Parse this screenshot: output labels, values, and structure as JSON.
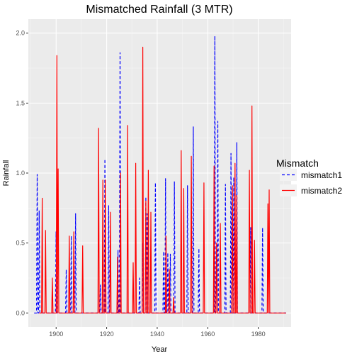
{
  "chart_data": {
    "type": "line",
    "title": "Mismatched Rainfall (3 MTR)",
    "xlabel": "Year",
    "ylabel": "Rainfall",
    "xlim": [
      1889,
      1993
    ],
    "ylim": [
      -0.1,
      2.1
    ],
    "x_ticks": [
      1900,
      1920,
      1940,
      1960,
      1980
    ],
    "y_ticks": [
      0.0,
      0.5,
      1.0,
      1.5,
      2.0
    ],
    "x_tick_labels": [
      "1900",
      "1920",
      "1940",
      "1960",
      "1980"
    ],
    "y_tick_labels": [
      "0.0",
      "0.5",
      "1.0",
      "1.5",
      "2.0"
    ],
    "grid": true,
    "legend": {
      "title": "Mismatch",
      "position": "right"
    },
    "series": [
      {
        "name": "mismatch1",
        "color": "#0000ff",
        "dash": "dashed",
        "spikes": [
          [
            1892.5,
            0.99
          ],
          [
            1893.3,
            0.73
          ],
          [
            1900,
            0.58
          ],
          [
            1904,
            0.31
          ],
          [
            1906,
            0.55
          ],
          [
            1907.7,
            0.71
          ],
          [
            1917.5,
            0.2
          ],
          [
            1919.3,
            1.1
          ],
          [
            1920.8,
            0.77
          ],
          [
            1924.5,
            0.45
          ],
          [
            1925.3,
            1.86
          ],
          [
            1933,
            0.25
          ],
          [
            1934.3,
            0.5
          ],
          [
            1935.5,
            0.83
          ],
          [
            1936,
            0.71
          ],
          [
            1939.3,
            0.93
          ],
          [
            1942.5,
            0.44
          ],
          [
            1943.3,
            0.96
          ],
          [
            1944.2,
            0.43
          ],
          [
            1945.2,
            0.42
          ],
          [
            1946.8,
            0.94
          ],
          [
            1952,
            0.91
          ],
          [
            1954.3,
            1.33
          ],
          [
            1956.5,
            0.46
          ],
          [
            1962.8,
            1.98
          ],
          [
            1964,
            1.37
          ],
          [
            1967,
            0.92
          ],
          [
            1969.2,
            1.14
          ],
          [
            1970.3,
            0.97
          ],
          [
            1971.5,
            1.22
          ],
          [
            1977,
            0.61
          ],
          [
            1981.7,
            0.61
          ]
        ]
      },
      {
        "name": "mismatch2",
        "color": "#ff0000",
        "dash": "solid",
        "spikes": [
          [
            1894.5,
            0.82
          ],
          [
            1895.8,
            0.59
          ],
          [
            1898.5,
            0.25
          ],
          [
            1900.3,
            1.84
          ],
          [
            1900.8,
            1.03
          ],
          [
            1905.2,
            0.55
          ],
          [
            1907,
            0.58
          ],
          [
            1910.5,
            0.48
          ],
          [
            1916.8,
            1.32
          ],
          [
            1918.5,
            0.95
          ],
          [
            1919.5,
            0.95
          ],
          [
            1921.5,
            0.72
          ],
          [
            1924.3,
            0.4
          ],
          [
            1925.5,
            1.0
          ],
          [
            1928.3,
            1.34
          ],
          [
            1930.5,
            0.36
          ],
          [
            1931.5,
            1.07
          ],
          [
            1934.3,
            1.9
          ],
          [
            1935.5,
            0.8
          ],
          [
            1936.5,
            1.02
          ],
          [
            1937.5,
            0.72
          ],
          [
            1943.5,
            0.55
          ],
          [
            1944.8,
            0.31
          ],
          [
            1946.5,
            0.11
          ],
          [
            1949.5,
            1.16
          ],
          [
            1950.5,
            0.89
          ],
          [
            1953.5,
            1.12
          ],
          [
            1958.5,
            0.93
          ],
          [
            1962.5,
            1.05
          ],
          [
            1963.5,
            0.5
          ],
          [
            1965,
            0.64
          ],
          [
            1969.8,
            0.91
          ],
          [
            1970.8,
            1.07
          ],
          [
            1971.5,
            0.84
          ],
          [
            1976.5,
            1.02
          ],
          [
            1977.5,
            1.48
          ],
          [
            1978.5,
            0.52
          ],
          [
            1983.8,
            0.78
          ],
          [
            1984.3,
            0.88
          ]
        ]
      }
    ]
  }
}
